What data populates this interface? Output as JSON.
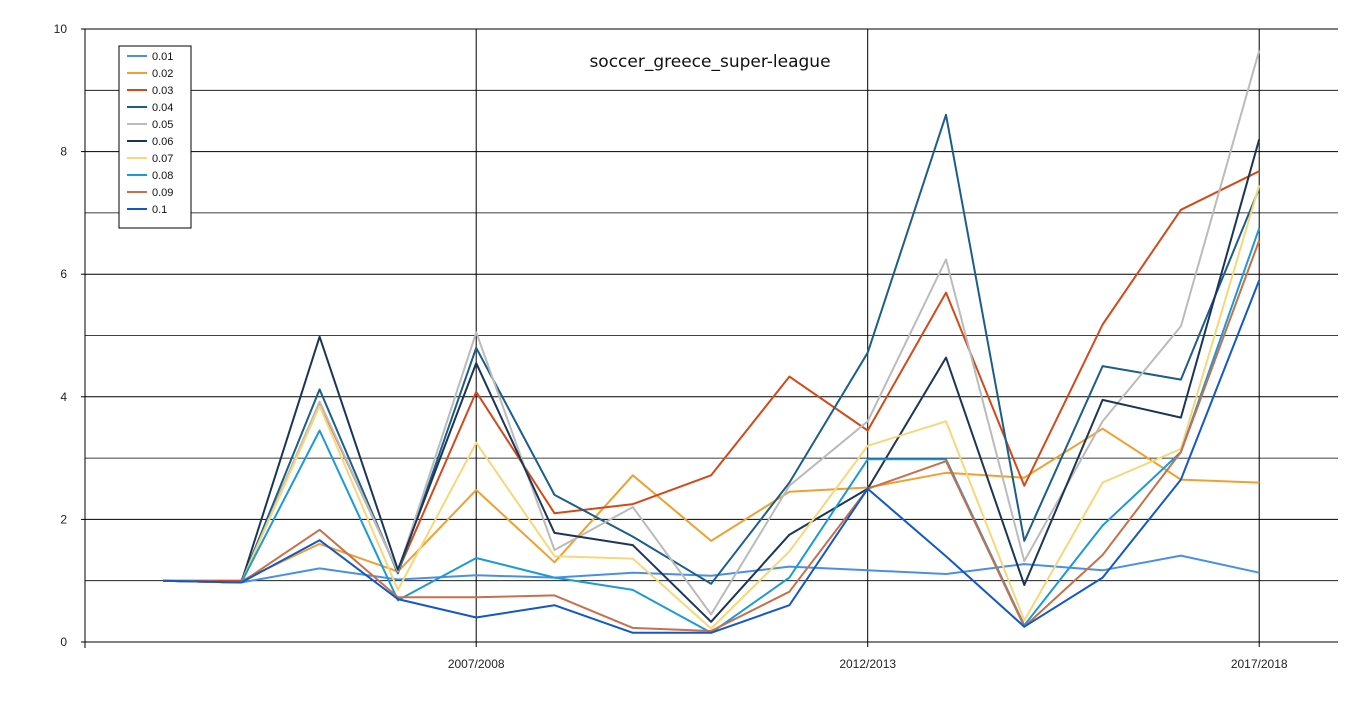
{
  "chart_data": {
    "type": "line",
    "title": "soccer_greece_super-league",
    "xlabel": "",
    "ylabel": "",
    "ylim": [
      0,
      10
    ],
    "yticks": [
      0,
      2,
      4,
      6,
      8,
      10
    ],
    "x_tick_labels": [
      "2007/2008",
      "2012/2013",
      "2017/2018"
    ],
    "x_tick_positions": [
      4,
      9,
      14
    ],
    "x": [
      0,
      1,
      2,
      3,
      4,
      5,
      6,
      7,
      8,
      9,
      10,
      11,
      12,
      13,
      14
    ],
    "grid": "major + minor horizontal, vertical at labeled ticks",
    "legend_position": "top-left",
    "series": [
      {
        "name": "0.01",
        "color": "#4a90e2",
        "values": [
          1.0,
          0.97,
          1.2,
          1.02,
          1.09,
          1.05,
          1.13,
          1.08,
          1.23,
          1.17,
          1.11,
          1.27,
          1.17,
          1.41,
          1.13
        ]
      },
      {
        "name": "0.02",
        "color": "#f0a030",
        "values": [
          1.0,
          1.0,
          1.6,
          1.15,
          2.48,
          1.3,
          2.72,
          1.65,
          2.45,
          2.52,
          2.76,
          2.68,
          3.48,
          2.65,
          2.6
        ]
      },
      {
        "name": "0.03",
        "color": "#d4491a",
        "values": [
          1.0,
          1.0,
          3.9,
          1.15,
          4.08,
          2.1,
          2.25,
          2.72,
          4.33,
          3.45,
          5.7,
          2.55,
          5.18,
          7.05,
          7.68
        ]
      },
      {
        "name": "0.04",
        "color": "#1b5e8a",
        "values": [
          1.0,
          0.97,
          4.12,
          1.12,
          4.8,
          2.4,
          1.72,
          0.95,
          2.6,
          4.72,
          8.6,
          1.65,
          4.5,
          4.28,
          7.4
        ]
      },
      {
        "name": "0.05",
        "color": "#bbbbbb",
        "values": [
          1.0,
          0.97,
          3.92,
          1.15,
          5.05,
          1.5,
          2.2,
          0.45,
          2.55,
          3.6,
          6.24,
          1.32,
          3.6,
          5.15,
          9.65
        ]
      },
      {
        "name": "0.06",
        "color": "#1c3557",
        "values": [
          1.0,
          0.97,
          4.98,
          1.18,
          4.55,
          1.78,
          1.58,
          0.33,
          1.75,
          2.5,
          4.64,
          0.93,
          3.95,
          3.66,
          8.2
        ]
      },
      {
        "name": "0.07",
        "color": "#f7d77a",
        "values": [
          1.0,
          0.97,
          3.85,
          0.85,
          3.25,
          1.4,
          1.36,
          0.22,
          1.48,
          3.2,
          3.6,
          0.35,
          2.6,
          3.15,
          7.45
        ]
      },
      {
        "name": "0.08",
        "color": "#1c9ad6",
        "values": [
          1.0,
          0.97,
          3.45,
          0.68,
          1.37,
          1.05,
          0.85,
          0.15,
          1.05,
          2.98,
          2.98,
          0.27,
          1.9,
          3.1,
          6.75
        ]
      },
      {
        "name": "0.09",
        "color": "#c8704a",
        "values": [
          1.0,
          0.97,
          1.83,
          0.73,
          0.73,
          0.76,
          0.23,
          0.18,
          0.82,
          2.5,
          2.95,
          0.25,
          1.42,
          3.1,
          6.55
        ]
      },
      {
        "name": "0.1",
        "color": "#1458c8",
        "values": [
          1.0,
          0.97,
          1.66,
          0.7,
          0.4,
          0.6,
          0.15,
          0.15,
          0.6,
          2.5,
          1.4,
          0.25,
          1.05,
          2.65,
          5.9
        ]
      }
    ]
  }
}
